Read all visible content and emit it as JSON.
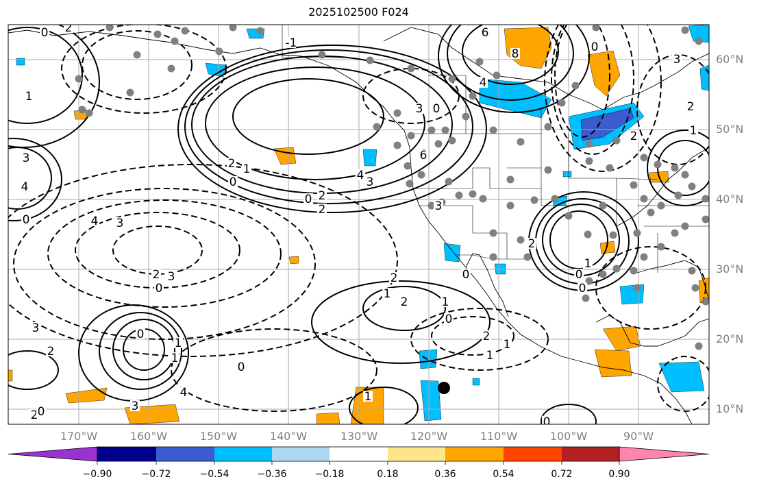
{
  "title": "2025102500 F024",
  "map": {
    "lat_labels": [
      "60°N",
      "50°N",
      "40°N",
      "30°N",
      "20°N",
      "10°N"
    ],
    "lon_labels": [
      "170°W",
      "160°W",
      "150°W",
      "140°W",
      "130°W",
      "120°W",
      "110°W",
      "100°W",
      "90°W"
    ],
    "grid": true,
    "contour_labels": [
      "0",
      "2",
      "-1",
      "6",
      "8",
      "4",
      "3",
      "0",
      "1",
      "3",
      "4",
      "6",
      "4",
      "3",
      "2",
      "1",
      "0",
      "0",
      "2",
      "2",
      "0",
      "4",
      "3",
      "3",
      "0",
      "2",
      "2",
      "1",
      "2",
      "1",
      "0",
      "2",
      "1",
      "1",
      "3",
      "2",
      "0",
      "1",
      "1",
      "0",
      "4",
      "3",
      "2",
      "0",
      "1",
      "0",
      "2",
      "1",
      "0",
      "0",
      "2",
      "3",
      "2",
      "1",
      "0",
      "6",
      "3",
      "0"
    ],
    "colors": {
      "land_line": "#000000",
      "grid": "#aaaaaa",
      "stations": "#808080",
      "positive_light": "#fde68a",
      "positive": "#ffa500",
      "negative_light": "#add8f0",
      "negative": "#00bfff",
      "negative_dark": "#3b5cce"
    }
  },
  "colorbar": {
    "ticks": [
      "−0.90",
      "−0.72",
      "−0.54",
      "−0.36",
      "−0.18",
      "0.18",
      "0.36",
      "0.54",
      "0.72",
      "0.90"
    ],
    "tick_values": [
      -0.9,
      -0.72,
      -0.54,
      -0.36,
      -0.18,
      0.18,
      0.36,
      0.54,
      0.72,
      0.9
    ],
    "colors": [
      "#9a32cd",
      "#00008b",
      "#3b5cce",
      "#00bfff",
      "#add8f0",
      "#ffffff",
      "#fde68a",
      "#ffa500",
      "#ff4500",
      "#b22222",
      "#ff85b0"
    ]
  }
}
